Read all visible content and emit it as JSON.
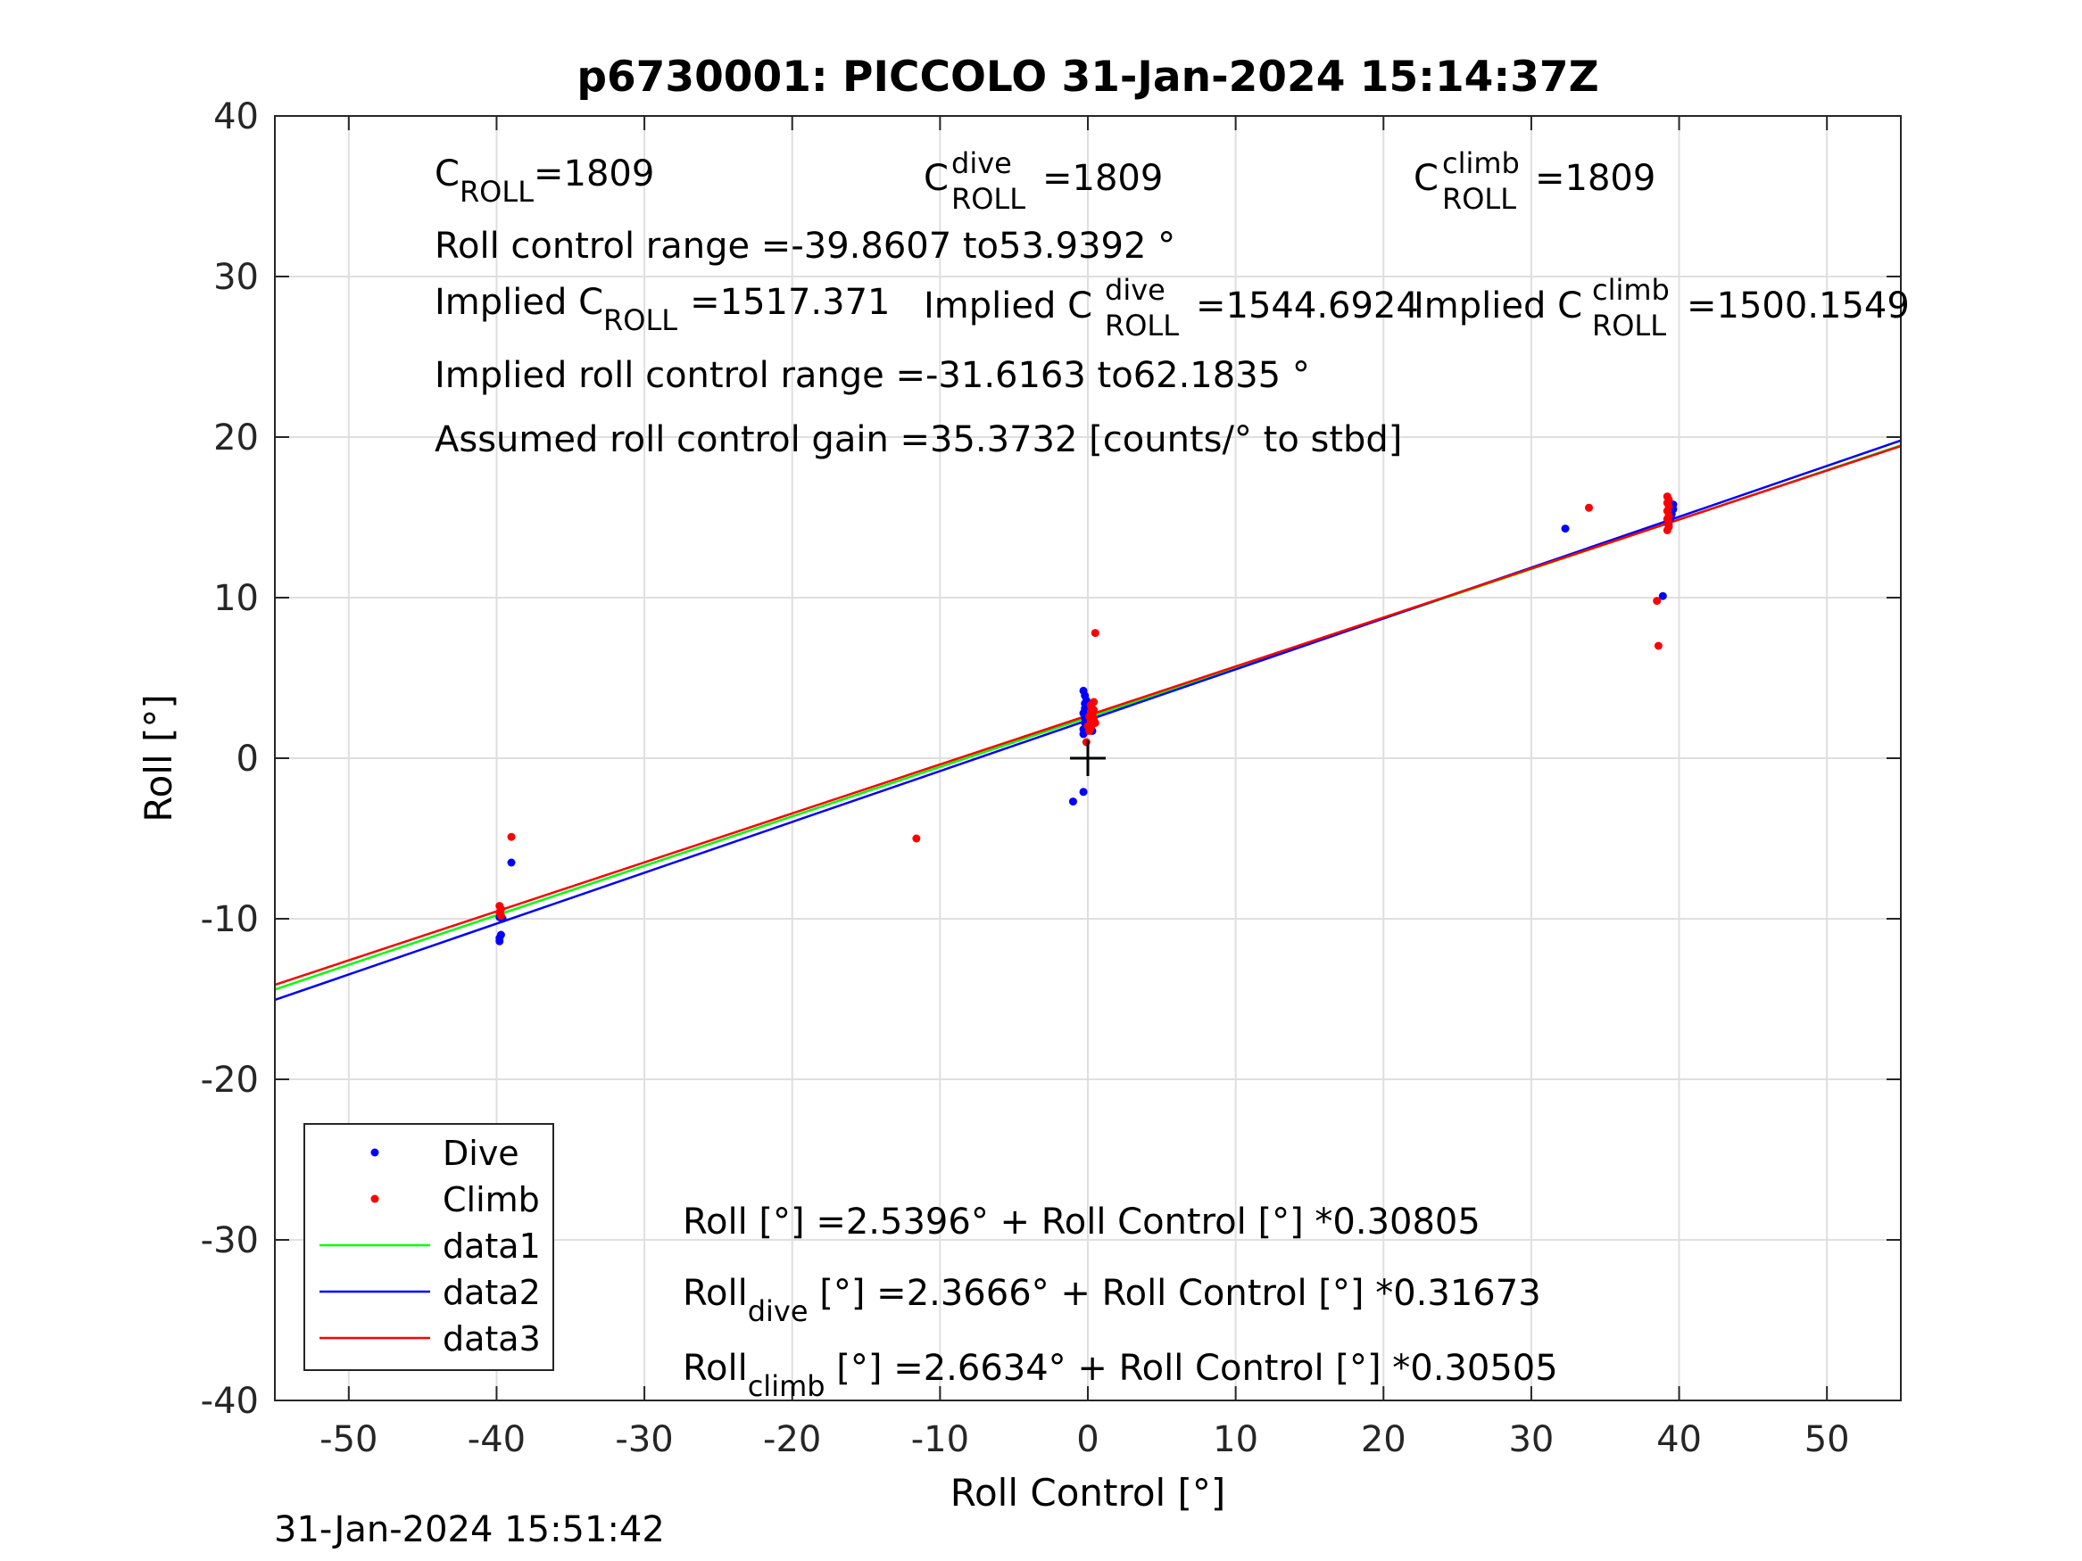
{
  "chart_data": {
    "type": "scatter",
    "title": "p6730001: PICCOLO 31-Jan-2024 15:14:37Z",
    "xlabel": "Roll Control [°]",
    "ylabel": "Roll [°]",
    "xlim": [
      -55,
      55
    ],
    "ylim": [
      -40,
      40
    ],
    "xticks": [
      "-50",
      "-40",
      "-30",
      "-20",
      "-10",
      "0",
      "10",
      "20",
      "30",
      "40",
      "50"
    ],
    "xtick_values": [
      -50,
      -40,
      -30,
      -20,
      -10,
      0,
      10,
      20,
      30,
      40,
      50
    ],
    "yticks": [
      "40",
      "30",
      "20",
      "10",
      "0",
      "-10",
      "-20",
      "-30",
      "-40"
    ],
    "ytick_values": [
      40,
      30,
      20,
      10,
      0,
      -10,
      -20,
      -30,
      -40
    ],
    "grid": true,
    "legend_position": "bottom-left",
    "legend": [
      {
        "label": "Dive",
        "color": "#0000ff",
        "marker": "point"
      },
      {
        "label": "Climb",
        "color": "#ff0000",
        "marker": "point"
      },
      {
        "label": "data1",
        "color": "#00ff00",
        "marker": "line"
      },
      {
        "label": "data2",
        "color": "#0000ff",
        "marker": "line"
      },
      {
        "label": "data3",
        "color": "#ff0000",
        "marker": "line"
      }
    ],
    "series": [
      {
        "name": "Dive",
        "color": "#0000ff",
        "points": [
          [
            -39.8,
            -11.2
          ],
          [
            -39.8,
            -11.4
          ],
          [
            -39.7,
            -11.0
          ],
          [
            -39.6,
            -10.0
          ],
          [
            -39.8,
            -9.9
          ],
          [
            -39.0,
            -6.5
          ],
          [
            -1.0,
            -2.7
          ],
          [
            -0.3,
            -2.1
          ],
          [
            -0.3,
            1.5
          ],
          [
            -0.3,
            1.8
          ],
          [
            -0.2,
            2.2
          ],
          [
            -0.2,
            2.5
          ],
          [
            -0.3,
            2.8
          ],
          [
            -0.2,
            3.1
          ],
          [
            -0.2,
            3.4
          ],
          [
            -0.1,
            3.6
          ],
          [
            -0.2,
            3.9
          ],
          [
            -0.3,
            4.2
          ],
          [
            0.1,
            2.4
          ],
          [
            0.2,
            2.9
          ],
          [
            0.3,
            1.7
          ],
          [
            32.3,
            14.3
          ],
          [
            38.9,
            10.1
          ],
          [
            39.3,
            14.5
          ],
          [
            39.4,
            14.9
          ],
          [
            39.5,
            15.2
          ],
          [
            39.6,
            15.5
          ],
          [
            39.6,
            15.8
          ],
          [
            39.4,
            15.0
          ]
        ]
      },
      {
        "name": "Climb",
        "color": "#ff0000",
        "points": [
          [
            -39.8,
            -9.2
          ],
          [
            -39.7,
            -9.4
          ],
          [
            -39.8,
            -9.6
          ],
          [
            -39.7,
            -9.8
          ],
          [
            -39.0,
            -4.9
          ],
          [
            -11.6,
            -5.0
          ],
          [
            0.5,
            7.8
          ],
          [
            -0.1,
            1.0
          ],
          [
            0.1,
            1.7
          ],
          [
            0.2,
            1.9
          ],
          [
            0.3,
            2.1
          ],
          [
            0.2,
            2.3
          ],
          [
            0.4,
            2.5
          ],
          [
            0.3,
            2.7
          ],
          [
            0.2,
            2.9
          ],
          [
            0.3,
            3.1
          ],
          [
            0.2,
            3.3
          ],
          [
            0.4,
            3.5
          ],
          [
            0.0,
            2.0
          ],
          [
            0.1,
            2.6
          ],
          [
            0.5,
            2.2
          ],
          [
            0.4,
            3.0
          ],
          [
            33.9,
            15.6
          ],
          [
            38.5,
            9.8
          ],
          [
            38.6,
            7.0
          ],
          [
            39.2,
            14.2
          ],
          [
            39.3,
            14.4
          ],
          [
            39.3,
            14.7
          ],
          [
            39.2,
            14.9
          ],
          [
            39.3,
            15.1
          ],
          [
            39.2,
            15.4
          ],
          [
            39.3,
            15.7
          ],
          [
            39.2,
            15.9
          ],
          [
            39.3,
            16.1
          ],
          [
            39.2,
            16.3
          ]
        ]
      }
    ],
    "fits": [
      {
        "name": "data1",
        "color": "#00ff00",
        "intercept": 2.5396,
        "slope": 0.30805
      },
      {
        "name": "data2",
        "color": "#0000ff",
        "intercept": 2.3666,
        "slope": 0.31673
      },
      {
        "name": "data3",
        "color": "#ff0000",
        "intercept": 2.6634,
        "slope": 0.30505
      }
    ],
    "crosshair": [
      0,
      0
    ],
    "annotations": {
      "croll_label": "=1809",
      "croll_dive_label": "=1809",
      "croll_climb_label": "=1809",
      "roll_range": "Roll control range =-39.8607 to53.9392 °",
      "implied_label": "Implied C",
      "implied_croll": "=1517.371",
      "implied_croll_dive": "=1544.6924",
      "implied_croll_climb": "=1500.1549",
      "implied_range": "Implied roll control range =-31.6163 to62.1835 °",
      "gain": "Assumed roll control gain =35.3732 [counts/° to stbd]",
      "fit_roll_prefix": "Roll",
      "fit_all": "Roll [°] =2.5396° + Roll Control [°] *0.30805",
      "fit_dive": " [°] =2.3666° + Roll Control [°] *0.31673",
      "fit_climb": " [°] =2.6634° + Roll Control [°] *0.30505",
      "sym_c": "C",
      "sub_roll": "ROLL",
      "sup_dive": "dive",
      "sup_climb": "climb",
      "sub_dive": "dive",
      "sub_climb": "climb"
    },
    "timestamp": "31-Jan-2024 15:51:42"
  }
}
